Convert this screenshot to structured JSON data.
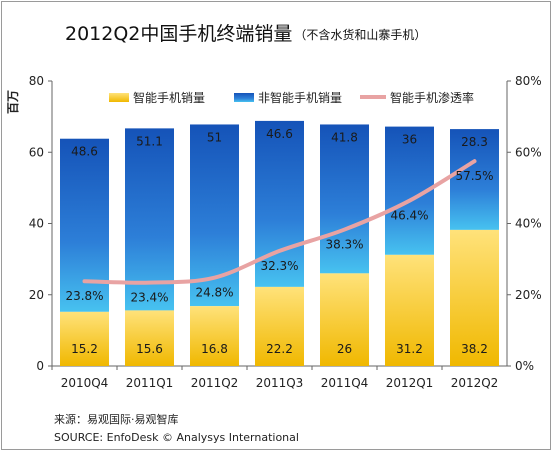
{
  "chart_data": {
    "type": "bar",
    "stacked": true,
    "title": "2012Q2中国手机终端销量",
    "subtitle": "（不含水货和山寨手机）",
    "ylabel": "百万",
    "ylim": [
      0,
      80
    ],
    "y_ticks": [
      0,
      20,
      40,
      60,
      80
    ],
    "y2lim": [
      0,
      80
    ],
    "y2_ticks": [
      "0%",
      "20%",
      "40%",
      "60%",
      "80%"
    ],
    "categories": [
      "2010Q4",
      "2011Q1",
      "2011Q2",
      "2011Q3",
      "2011Q4",
      "2012Q1",
      "2012Q2"
    ],
    "series": [
      {
        "name": "智能手机销量",
        "type": "bar",
        "color": "#f5c320",
        "values": [
          15.2,
          15.6,
          16.8,
          22.2,
          26.0,
          31.2,
          38.2
        ]
      },
      {
        "name": "非智能手机销量",
        "type": "bar",
        "color": "#2b7fd6",
        "values": [
          48.6,
          51.1,
          51.0,
          46.6,
          41.8,
          36.0,
          28.3
        ]
      },
      {
        "name": "智能手机渗透率",
        "type": "line",
        "axis": "right",
        "color": "#e8a3a3",
        "values": [
          23.8,
          23.4,
          24.8,
          32.3,
          38.3,
          46.4,
          57.5
        ],
        "labels": [
          "23.8%",
          "23.4%",
          "24.8%",
          "32.3%",
          "38.3%",
          "46.4%",
          "57.5%"
        ]
      }
    ],
    "legend_position": "top",
    "grid": false
  },
  "source": {
    "line1": "来源：易观国际·易观智库",
    "line2": "SOURCE: EnfoDesk © Analysys International"
  }
}
